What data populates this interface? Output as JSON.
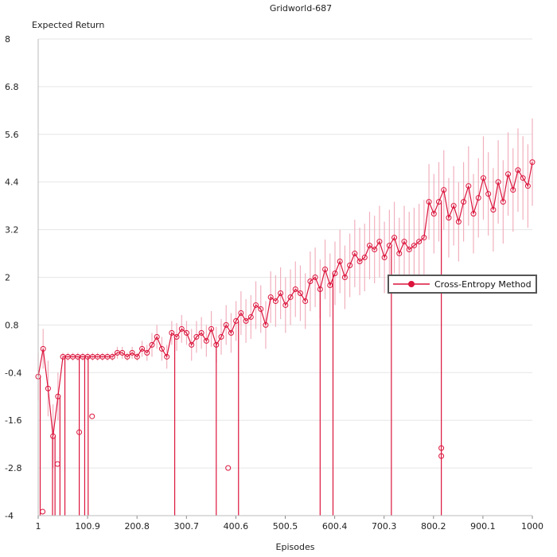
{
  "chart_data": {
    "type": "line",
    "title": "Gridworld-687",
    "xlabel": "Episodes",
    "ylabel": "Expected Return",
    "xlim": [
      1,
      1000
    ],
    "ylim": [
      -4,
      8
    ],
    "x_tick_labels": [
      "1",
      "100.9",
      "200.8",
      "300.7",
      "400.6",
      "500.5",
      "600.4",
      "700.3",
      "800.2",
      "900.1",
      "1000"
    ],
    "y_tick_labels": [
      "8",
      "6.8",
      "5.6",
      "4.4",
      "3.2",
      "2",
      "0.8",
      "-0.4",
      "-1.6",
      "-2.8",
      "-4"
    ],
    "grid": "horizontal",
    "legend_position": "right",
    "series": [
      {
        "name": "Cross-Entropy Method",
        "color": "#dc143c",
        "error_color": "#f0a8b8",
        "marker": "circle",
        "x": [
          1,
          11,
          21,
          31,
          41,
          51,
          61,
          71,
          81,
          91,
          101,
          111,
          121,
          131,
          141,
          151,
          161,
          171,
          181,
          191,
          201,
          211,
          221,
          231,
          241,
          251,
          261,
          271,
          281,
          291,
          301,
          311,
          321,
          331,
          341,
          351,
          361,
          371,
          381,
          391,
          401,
          411,
          421,
          431,
          441,
          451,
          461,
          471,
          481,
          491,
          501,
          511,
          521,
          531,
          541,
          551,
          561,
          571,
          581,
          591,
          601,
          611,
          621,
          631,
          641,
          651,
          661,
          671,
          681,
          691,
          701,
          711,
          721,
          731,
          741,
          751,
          761,
          771,
          781,
          791,
          801,
          811,
          821,
          831,
          841,
          851,
          861,
          871,
          881,
          891,
          901,
          911,
          921,
          931,
          941,
          951,
          961,
          971,
          981,
          991,
          1000
        ],
        "y": [
          -0.5,
          0.2,
          -0.8,
          -2.0,
          -1.0,
          0.0,
          0.0,
          0.0,
          0.0,
          0.0,
          0.0,
          0.0,
          0.0,
          0.0,
          0.0,
          0.0,
          0.1,
          0.1,
          0.0,
          0.1,
          0.0,
          0.2,
          0.1,
          0.3,
          0.5,
          0.2,
          0.0,
          0.6,
          0.5,
          0.7,
          0.6,
          0.3,
          0.5,
          0.6,
          0.4,
          0.7,
          0.3,
          0.5,
          0.8,
          0.6,
          0.9,
          1.1,
          0.9,
          1.0,
          1.3,
          1.2,
          0.8,
          1.5,
          1.4,
          1.6,
          1.3,
          1.5,
          1.7,
          1.6,
          1.4,
          1.9,
          2.0,
          1.7,
          2.2,
          1.8,
          2.1,
          2.4,
          2.0,
          2.3,
          2.6,
          2.4,
          2.5,
          2.8,
          2.7,
          2.9,
          2.5,
          2.8,
          3.0,
          2.6,
          2.9,
          2.7,
          2.8,
          2.9,
          3.0,
          3.9,
          3.6,
          3.9,
          4.2,
          3.5,
          3.8,
          3.4,
          3.9,
          4.3,
          3.6,
          4.0,
          4.5,
          4.1,
          3.7,
          4.4,
          3.9,
          4.6,
          4.2,
          4.7,
          4.5,
          4.3,
          4.9
        ],
        "error": [
          0.6,
          0.5,
          0.7,
          0.8,
          0.6,
          0.1,
          0.1,
          0.1,
          0.1,
          0.1,
          0.1,
          0.1,
          0.1,
          0.1,
          0.1,
          0.1,
          0.15,
          0.15,
          0.1,
          0.15,
          0.1,
          0.2,
          0.2,
          0.3,
          0.3,
          0.3,
          0.3,
          0.3,
          0.35,
          0.35,
          0.3,
          0.4,
          0.4,
          0.4,
          0.4,
          0.45,
          0.45,
          0.45,
          0.5,
          0.5,
          0.5,
          0.55,
          0.55,
          0.55,
          0.6,
          0.6,
          0.6,
          0.65,
          0.65,
          0.65,
          0.7,
          0.7,
          0.7,
          0.7,
          0.7,
          0.75,
          0.75,
          0.75,
          0.75,
          0.8,
          0.8,
          0.8,
          0.8,
          0.8,
          0.85,
          0.85,
          0.85,
          0.85,
          0.85,
          0.9,
          0.9,
          0.9,
          0.9,
          0.9,
          0.9,
          0.95,
          0.95,
          0.95,
          0.95,
          0.95,
          1.0,
          1.0,
          1.0,
          1.0,
          1.0,
          1.0,
          1.0,
          1.0,
          1.0,
          1.0,
          1.05,
          1.05,
          1.05,
          1.05,
          1.05,
          1.05,
          1.05,
          1.05,
          1.05,
          1.05,
          1.1
        ]
      }
    ],
    "drops_to_min": [
      5,
      30,
      35,
      45,
      55,
      84,
      95,
      102,
      277,
      361,
      406,
      571,
      597,
      715,
      816
    ],
    "outlier_points": [
      {
        "x": 385,
        "y": -2.8
      },
      {
        "x": 816,
        "y": -2.3
      },
      {
        "x": 816,
        "y": -2.5
      },
      {
        "x": 40,
        "y": -2.7
      },
      {
        "x": 10,
        "y": -3.9
      },
      {
        "x": 84,
        "y": -1.9
      },
      {
        "x": 110,
        "y": -1.5
      }
    ]
  }
}
